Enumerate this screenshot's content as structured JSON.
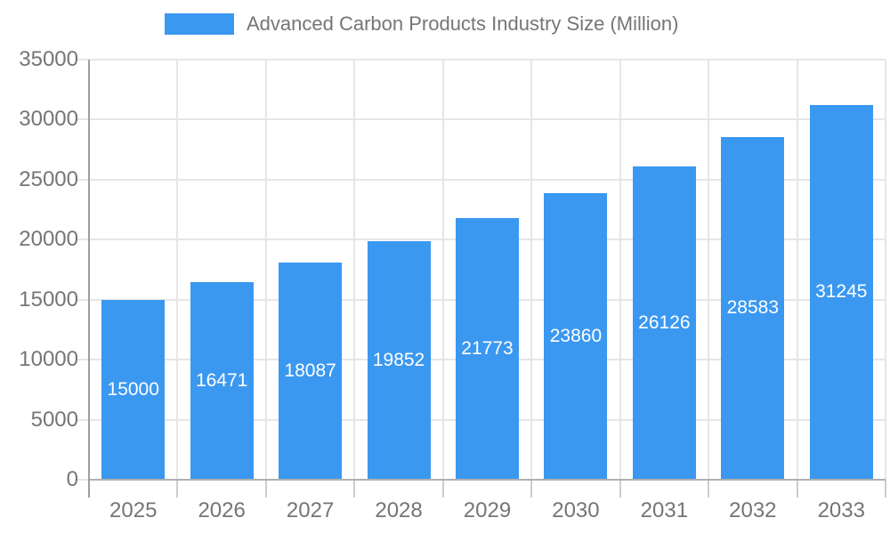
{
  "legend": {
    "label": "Advanced Carbon Products Industry Size (Million)"
  },
  "colors": {
    "bar": "#3b98f0",
    "axis_text": "#757575",
    "grid": "#e6e6e6",
    "axis_line": "#9e9e9e",
    "baseline": "#b0b0b0",
    "minor_tick": "#cccccc",
    "value_label": "#ffffff",
    "background": "#ffffff"
  },
  "chart_data": {
    "type": "bar",
    "title": "Advanced Carbon Products Industry Size (Million)",
    "categories": [
      "2025",
      "2026",
      "2027",
      "2028",
      "2029",
      "2030",
      "2031",
      "2032",
      "2033"
    ],
    "values": [
      15000,
      16471,
      18087,
      19852,
      21773,
      23860,
      26126,
      28583,
      31245
    ],
    "xlabel": "",
    "ylabel": "",
    "ylim": [
      0,
      35000
    ],
    "yticks": [
      0,
      5000,
      10000,
      15000,
      20000,
      25000,
      30000,
      35000
    ],
    "grid": true,
    "legend_position": "top",
    "value_labels": "inside-center",
    "bar_color": "#3b98f0"
  }
}
